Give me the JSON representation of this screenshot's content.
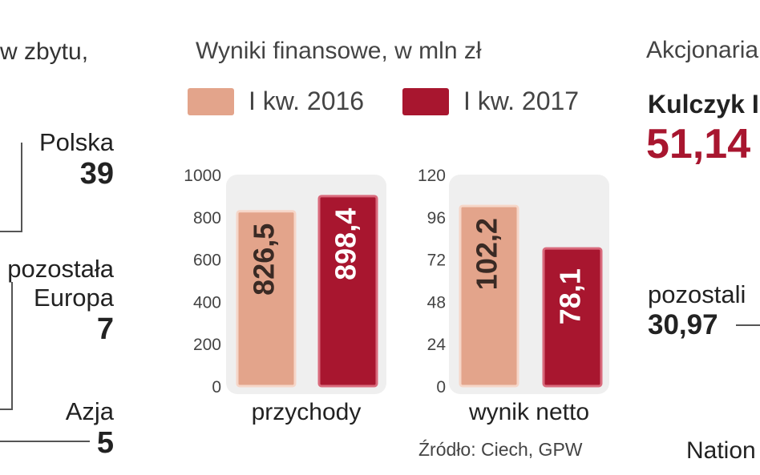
{
  "left_panel": {
    "title_fragment": "w zbytu,",
    "regions": [
      {
        "label": "Polska",
        "value": "39"
      },
      {
        "label_line1": "pozostała",
        "label_line2": "Europa",
        "value": "7"
      },
      {
        "label": "Azja",
        "value": "5"
      }
    ]
  },
  "middle_panel": {
    "title": "Wyniki finansowe, w mln zł",
    "source": "Źródło: Ciech, GPW"
  },
  "right_panel": {
    "title_fragment": "Akcjonaria",
    "holder_name": "Kulczyk I",
    "holder_value": "51,14",
    "others_label": "pozostali",
    "others_value": "30,97",
    "bottom_fragment": "Nation"
  },
  "colors": {
    "series_2016": "#e3a48b",
    "series_2017": "#a8162f",
    "bar_panel": "#efefef",
    "accent_red": "#a8162f"
  },
  "chart_data": [
    {
      "type": "bar",
      "title": "Wyniki finansowe, w mln zł",
      "categories": [
        "przychody"
      ],
      "series": [
        {
          "name": "I kw. 2016",
          "values": [
            826.5
          ],
          "label": "826,5"
        },
        {
          "name": "I kw. 2017",
          "values": [
            898.4
          ],
          "label": "898,4"
        }
      ],
      "yticks": [
        "0",
        "200",
        "400",
        "600",
        "800",
        "1000"
      ],
      "ylim": [
        0,
        1000
      ],
      "xlabel": "przychody",
      "legend": "top",
      "grid": false
    },
    {
      "type": "bar",
      "categories": [
        "wynik netto"
      ],
      "series": [
        {
          "name": "I kw. 2016",
          "values": [
            102.2
          ],
          "label": "102,2"
        },
        {
          "name": "I kw. 2017",
          "values": [
            78.1
          ],
          "label": "78,1"
        }
      ],
      "yticks": [
        "0",
        "24",
        "48",
        "72",
        "96",
        "120"
      ],
      "ylim": [
        0,
        120
      ],
      "xlabel": "wynik netto",
      "legend": "top",
      "grid": false
    }
  ]
}
